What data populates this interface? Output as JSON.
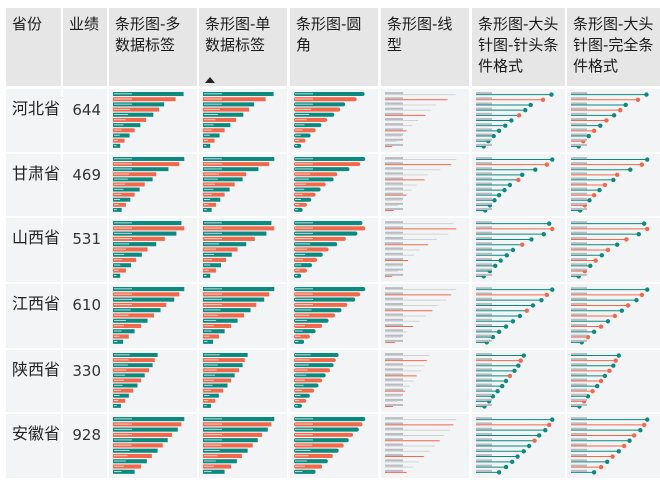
{
  "headers": [
    "省份",
    "业绩",
    "条形图-多数据标签",
    "条形图-单数据标签",
    "条形图-圆角",
    "条形图-线型",
    "条形图-大头针图-针头条件格式",
    "条形图-大头针图-完全条件格式"
  ],
  "rows": [
    {
      "province": "河北省",
      "value": "644",
      "bars": [
        0.98,
        0.87,
        0.71,
        0.64,
        0.56,
        0.46,
        0.38,
        0.3,
        0.23,
        0.16,
        0.1
      ]
    },
    {
      "province": "甘肃省",
      "value": "469",
      "bars": [
        0.99,
        0.92,
        0.77,
        0.6,
        0.55,
        0.44,
        0.37,
        0.3,
        0.24,
        0.18,
        0.12
      ]
    },
    {
      "province": "山西省",
      "value": "531",
      "bars": [
        0.95,
        0.99,
        0.88,
        0.72,
        0.6,
        0.48,
        0.4,
        0.32,
        0.25,
        0.18,
        0.1
      ]
    },
    {
      "province": "江西省",
      "value": "610",
      "bars": [
        0.99,
        0.92,
        0.85,
        0.74,
        0.66,
        0.57,
        0.48,
        0.39,
        0.3,
        0.22,
        0.14
      ]
    },
    {
      "province": "陕西省",
      "value": "330",
      "bars": [
        0.62,
        0.58,
        0.55,
        0.5,
        0.44,
        0.39,
        0.34,
        0.28,
        0.22,
        0.17,
        0.11
      ]
    },
    {
      "province": "安徽省",
      "value": "928",
      "bars": [
        0.99,
        0.95,
        0.9,
        0.82,
        0.76,
        0.69,
        0.62,
        0.54,
        0.47,
        0.39,
        0.3
      ]
    }
  ],
  "colors": {
    "teal": "#0b8a80",
    "orange": "#f2684a",
    "header_bg": "#e6e6e6",
    "cell_bg": "#f3f4f6",
    "line": "#cfd3d6"
  }
}
